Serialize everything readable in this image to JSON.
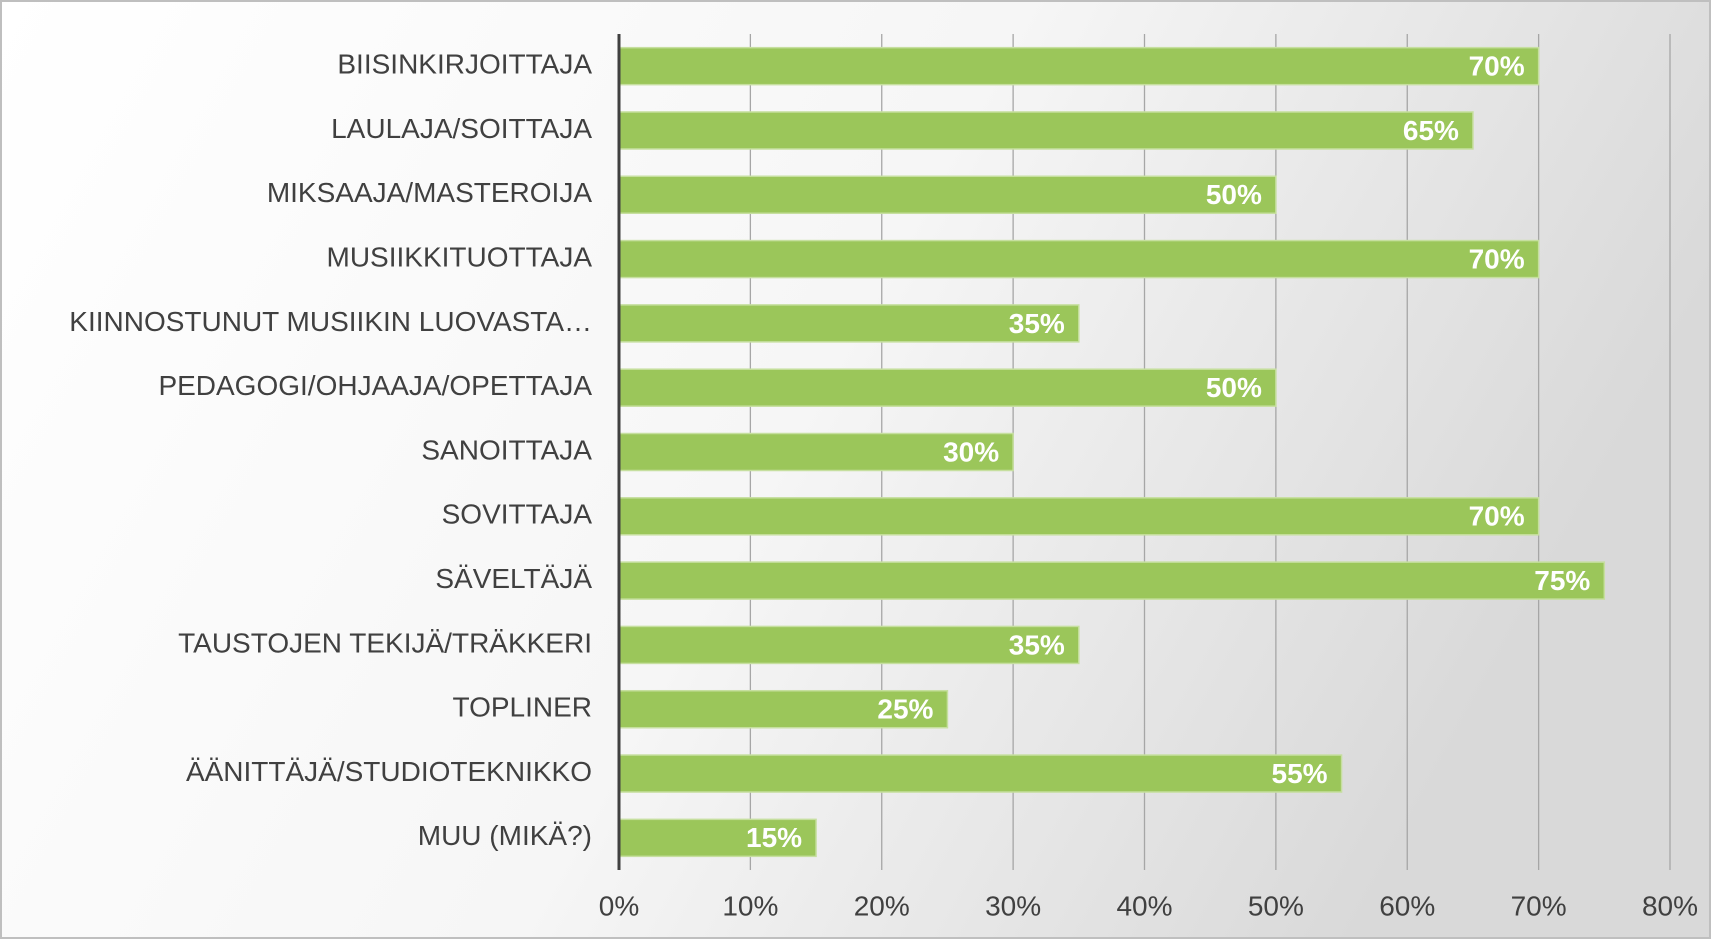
{
  "chart_data": {
    "type": "barh",
    "categories": [
      "BIISINKIRJOITTAJA",
      "LAULAJA/SOITTAJA",
      "MIKSAAJA/MASTEROIJA",
      "MUSIIKKITUOTTAJA",
      "KIINNOSTUNUT MUSIIKIN LUOVASTA…",
      "PEDAGOGI/OHJAAJA/OPETTAJA",
      "SANOITTAJA",
      "SOVITTAJA",
      "SÄVELTÄJÄ",
      "TAUSTOJEN TEKIJÄ/TRÄKKERI",
      "TOPLINER",
      "ÄÄNITTÄJÄ/STUDIOTEKNIKKO",
      "MUU (MIKÄ?)"
    ],
    "values": [
      70,
      65,
      50,
      70,
      35,
      50,
      30,
      70,
      75,
      35,
      25,
      55,
      15
    ],
    "value_labels": [
      "70%",
      "65%",
      "50%",
      "70%",
      "35%",
      "50%",
      "30%",
      "70%",
      "75%",
      "35%",
      "25%",
      "55%",
      "15%"
    ],
    "color": "#9bc65a",
    "xlim": [
      0,
      80
    ],
    "xticks": [
      {
        "value": 0,
        "label": "0%"
      },
      {
        "value": 10,
        "label": "10%"
      },
      {
        "value": 20,
        "label": "20%"
      },
      {
        "value": 30,
        "label": "30%"
      },
      {
        "value": 40,
        "label": "40%"
      },
      {
        "value": 50,
        "label": "50%"
      },
      {
        "value": 60,
        "label": "60%"
      },
      {
        "value": 70,
        "label": "70%"
      },
      {
        "value": 80,
        "label": "80%"
      }
    ],
    "grid": true
  }
}
